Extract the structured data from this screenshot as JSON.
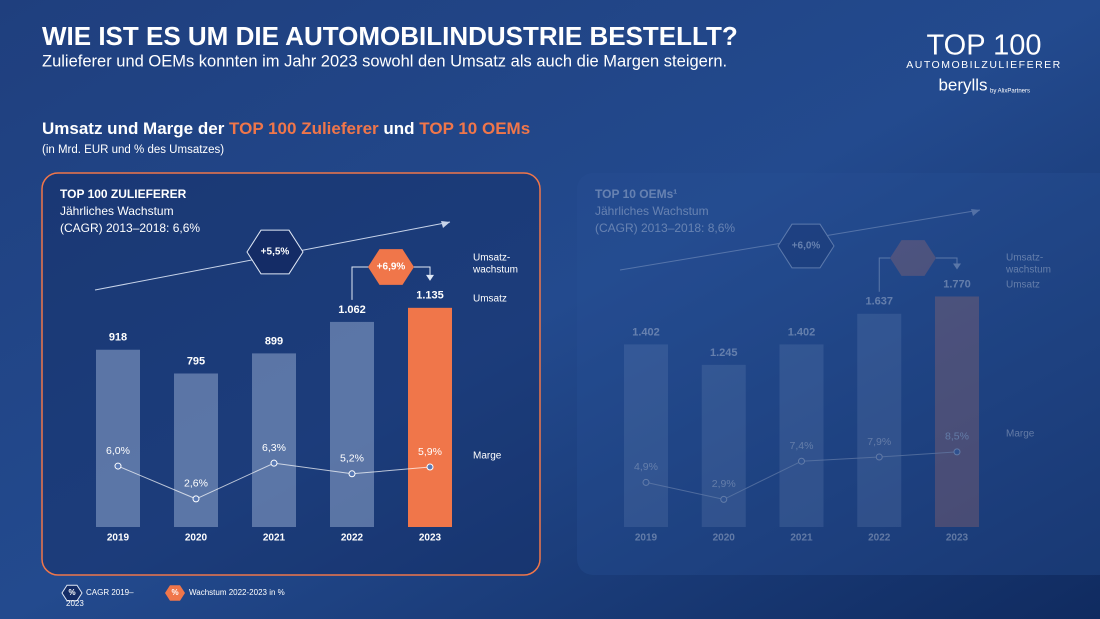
{
  "header": {
    "title": "WIE IST ES UM DIE AUTOMOBILINDUSTRIE BESTELLT?",
    "subtitle": "Zulieferer und OEMs konnten im Jahr 2023 sowohl den Umsatz als auch die Margen steigern.",
    "logo_title": "TOP 100",
    "logo_subtitle": "AUTOMOBILZULIEFERER",
    "logo_brand": "berylls",
    "logo_by": "by AlixPartners"
  },
  "section": {
    "title_parts": [
      "Umsatz und Marge der ",
      "TOP 100 Zulieferer",
      " und ",
      "TOP 10 OEMs"
    ],
    "note": "(in Mrd. EUR und % des Umsatzes)"
  },
  "chart_data": [
    {
      "type": "bar",
      "title": "TOP 100 ZULIEFERER",
      "subtitle_lines": [
        "Jährliches Wachstum",
        "(CAGR) 2013–2018: 6,6%"
      ],
      "faded": false,
      "categories": [
        "2019",
        "2020",
        "2021",
        "2022",
        "2023"
      ],
      "series": [
        {
          "name": "Umsatz",
          "color": "#8fa6cc",
          "highlight_color": "#f0764a",
          "values": [
            918,
            795,
            899,
            1062,
            1135
          ],
          "value_labels": [
            "918",
            "795",
            "899",
            "1.062",
            "1.135"
          ]
        },
        {
          "name": "Marge",
          "type": "line",
          "axis": "y2",
          "color": "#ffffff",
          "values": [
            6.0,
            2.6,
            6.3,
            5.2,
            5.9
          ],
          "value_labels": [
            "6,0%",
            "2,6%",
            "6,3%",
            "5,2%",
            "5,9%"
          ]
        }
      ],
      "ylim": [
        0,
        1450
      ],
      "y2lim": [
        0,
        29
      ],
      "cagr_label": "+5,5%",
      "growth_label": "+6,9%",
      "growth_title_lines": [
        "Umsatz-",
        "wachstum"
      ]
    },
    {
      "type": "bar",
      "title": "TOP 10 OEMs¹",
      "subtitle_lines": [
        "Jährliches Wachstum",
        "(CAGR) 2013–2018: 8,6%"
      ],
      "faded": true,
      "categories": [
        "2019",
        "2020",
        "2021",
        "2022",
        "2023"
      ],
      "series": [
        {
          "name": "Umsatz",
          "color": "#8fa6cc",
          "highlight_color": "#b0706a",
          "values": [
            1402,
            1245,
            1402,
            1637,
            1770
          ],
          "value_labels": [
            "1.402",
            "1.245",
            "1.402",
            "1.637",
            "1.770"
          ]
        },
        {
          "name": "Marge",
          "type": "line",
          "axis": "y2",
          "color": "#ffffff",
          "values": [
            4.9,
            2.9,
            7.4,
            7.9,
            8.5
          ],
          "value_labels": [
            "4,9%",
            "2,9%",
            "7,4%",
            "7,9%",
            "8,5%"
          ]
        }
      ],
      "ylim": [
        0,
        2150
      ],
      "y2lim": [
        0,
        33
      ],
      "cagr_label": "+6,0%",
      "growth_title_lines": [
        "Umsatz-",
        "wachstum"
      ]
    }
  ],
  "legend": [
    {
      "symbol": "%",
      "label_lines": [
        "CAGR 2019–",
        "2023"
      ]
    },
    {
      "symbol": "%",
      "label_lines": [
        "Wachstum 2022-2023 in %"
      ]
    }
  ]
}
